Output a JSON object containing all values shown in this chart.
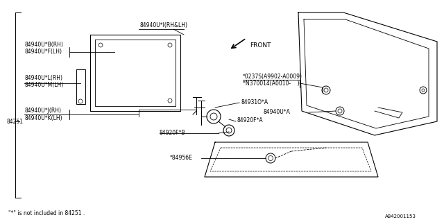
{
  "bg_color": "#ffffff",
  "line_color": "#000000",
  "text_color": "#000000",
  "footer_note": "\"*\" is not included in 84251 .",
  "ref_code": "A842001153",
  "labels": {
    "front_arrow": "FRONT",
    "part_84251": "84251",
    "part_84940UI": "84940U*I(RH&LH)",
    "part_84940UB": "84940U*B(RH)",
    "part_84940UF": "84940U*F(LH)",
    "part_84940UL": "84940U*L(RH)",
    "part_84940UM": "84940U*M(LH)",
    "part_84940UJ": "84940U*J(RH)",
    "part_84940UK": "84940U*K(LH)",
    "part_84931": "84931O*A",
    "part_84940UA": "84940U*A",
    "part_84920FA": "84920F*A",
    "part_84920FB": "84920F*B",
    "part_84956E": "*84956E",
    "part_0237S": "*0237S(A9902-A0009)",
    "part_N370014": "*N370014(A0010-    )"
  }
}
